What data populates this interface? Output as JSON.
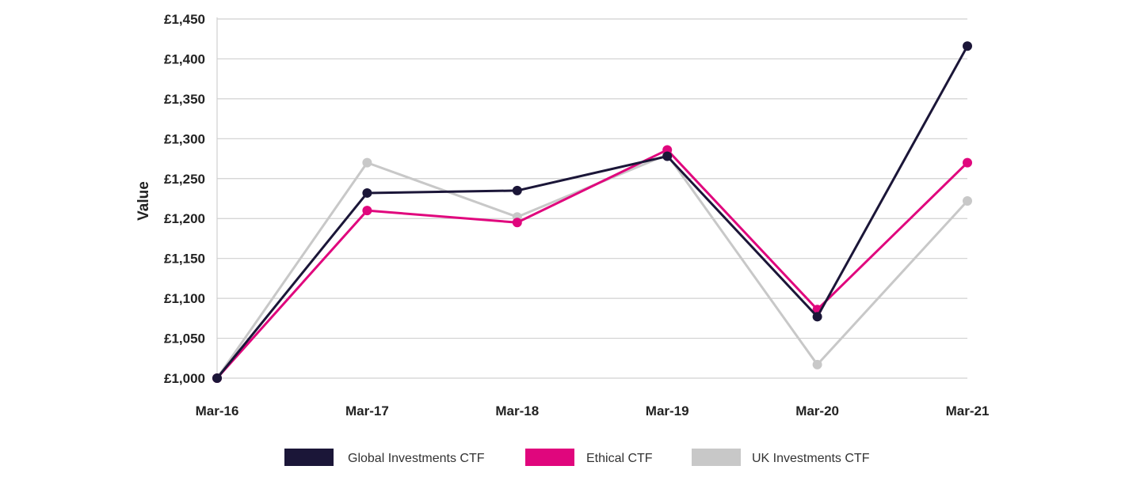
{
  "chart_data": {
    "type": "line",
    "title": "",
    "xlabel": "",
    "ylabel": "Value",
    "categories": [
      "Mar-16",
      "Mar-17",
      "Mar-18",
      "Mar-19",
      "Mar-20",
      "Mar-21"
    ],
    "ylim": [
      1000,
      1450
    ],
    "yticks": [
      1000,
      1050,
      1100,
      1150,
      1200,
      1250,
      1300,
      1350,
      1400,
      1450
    ],
    "ytick_labels": [
      "£1,000",
      "£1,050",
      "£1,100",
      "£1,150",
      "£1,200",
      "£1,250",
      "£1,300",
      "£1,350",
      "£1,400",
      "£1,450"
    ],
    "grid": true,
    "legend_position": "bottom",
    "series": [
      {
        "name": "UK Investments CTF",
        "color": "#c8c8c8",
        "values": [
          1000,
          1270,
          1202,
          1280,
          1017,
          1222
        ]
      },
      {
        "name": "Ethical CTF",
        "color": "#e0067d",
        "values": [
          1000,
          1210,
          1195,
          1286,
          1086,
          1270
        ]
      },
      {
        "name": "Global Investments CTF",
        "color": "#1b1638",
        "values": [
          1000,
          1232,
          1235,
          1278,
          1077,
          1416
        ]
      }
    ],
    "legend_order": [
      2,
      1,
      0
    ]
  }
}
